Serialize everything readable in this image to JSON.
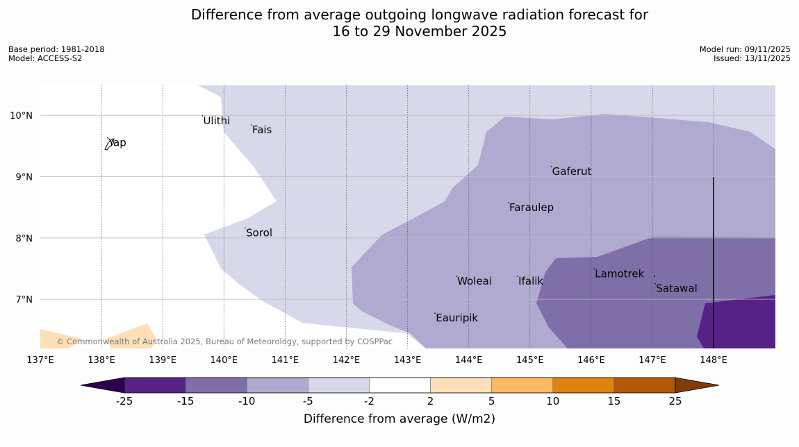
{
  "title": {
    "line1": "Difference from average outgoing longwave radiation forecast for",
    "line2": "16 to 29 November 2025"
  },
  "meta_left": {
    "base_period": "Base period: 1981-2018",
    "model": "Model: ACCESS-S2"
  },
  "meta_right": {
    "model_run": "Model run: 09/11/2025",
    "issued": "Issued: 13/11/2025"
  },
  "map": {
    "lon_range": [
      137,
      149
    ],
    "lat_range": [
      6.2,
      10.5
    ],
    "lon_ticks": [
      "137°E",
      "138°E",
      "139°E",
      "140°E",
      "141°E",
      "142°E",
      "143°E",
      "144°E",
      "145°E",
      "146°E",
      "147°E",
      "148°E"
    ],
    "lat_ticks": [
      "10°N",
      "9°N",
      "8°N",
      "7°N"
    ],
    "places": [
      {
        "name": "Yap",
        "lon": 138.1,
        "lat": 9.52
      },
      {
        "name": "Ulithi",
        "lon": 139.65,
        "lat": 9.88
      },
      {
        "name": "Fais",
        "lon": 140.45,
        "lat": 9.73
      },
      {
        "name": "Gaferut",
        "lon": 145.35,
        "lat": 9.05
      },
      {
        "name": "Faraulep",
        "lon": 144.65,
        "lat": 8.46
      },
      {
        "name": "Sorol",
        "lon": 140.35,
        "lat": 8.05
      },
      {
        "name": "Lamotrek",
        "lon": 146.05,
        "lat": 7.38
      },
      {
        "name": "Satawal",
        "lon": 147.05,
        "lat": 7.14
      },
      {
        "name": "Woleai",
        "lon": 143.8,
        "lat": 7.26
      },
      {
        "name": "Ifalik",
        "lon": 144.8,
        "lat": 7.26
      },
      {
        "name": "Eauripik",
        "lon": 143.45,
        "lat": 6.66
      }
    ],
    "copyright": "© Commonwealth of Australia 2025, Bureau of Meteorology, supported by COSPPac"
  },
  "colorbar": {
    "labels": [
      "-25",
      "-15",
      "-10",
      "-5",
      "-2",
      "2",
      "5",
      "10",
      "15",
      "25"
    ],
    "colors": [
      "#562287",
      "#7f6fa8",
      "#b0a9d0",
      "#d7d8e9",
      "#ffffff",
      "#fee0b8",
      "#fbb862",
      "#e1810f",
      "#b35806"
    ],
    "extend_low": "#2d004b",
    "extend_high": "#7f3b08",
    "title": "Difference from average (W/m2)"
  },
  "colors": {
    "c_m5": "#d7d8e9",
    "c_m10": "#b0a9d0",
    "c_m15": "#7f6fa8",
    "c_m25": "#562287",
    "c_p5": "#fee0b8"
  }
}
